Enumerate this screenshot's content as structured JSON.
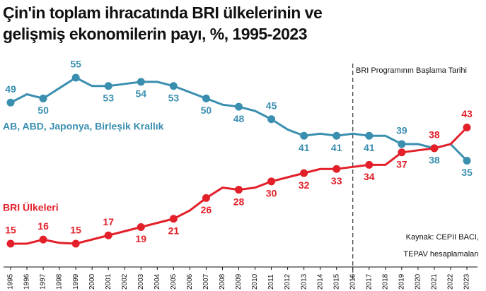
{
  "chart_data": {
    "type": "line",
    "title": [
      "Çin'in toplam ihracatında BRI ülkelerinin ve",
      "gelişmiş ekonomilerin payı, %, 1995-2023"
    ],
    "categories": [
      "1995",
      "1996",
      "1997",
      "1998",
      "1999",
      "2000",
      "2001",
      "2002",
      "2003",
      "2004",
      "2005",
      "2006",
      "2007",
      "2008",
      "2009",
      "2010",
      "2011",
      "2012",
      "2013",
      "2014",
      "2015",
      "2016",
      "2017",
      "2018",
      "2019",
      "2020",
      "2021",
      "2022",
      "2023"
    ],
    "series": [
      {
        "name": "AB, ABD, Japonya, Birleşik Krallık",
        "color": "#3a8fb0",
        "values": [
          49,
          51,
          50,
          52.5,
          55,
          53,
          53,
          53.5,
          54,
          54,
          53,
          51.5,
          50,
          48.5,
          48,
          47,
          45,
          42.5,
          41,
          41.5,
          41,
          41.5,
          41,
          41,
          39,
          39,
          38,
          39,
          35
        ]
      },
      {
        "name": "BRI Ülkeleri",
        "color": "#e3202a",
        "values": [
          15,
          15,
          16,
          15.2,
          15,
          16,
          17,
          18,
          19,
          20,
          21,
          23,
          26,
          28.5,
          28,
          28.5,
          30,
          31,
          32,
          33,
          33,
          33.5,
          34,
          34,
          37,
          37.5,
          38,
          39,
          43
        ]
      }
    ],
    "annotation": "BRI Programının Başlama Tarihi",
    "annotation_category": "2016",
    "source": [
      "Kaynak: CEPII BACI,",
      "TEPAV hesaplamaları"
    ]
  }
}
